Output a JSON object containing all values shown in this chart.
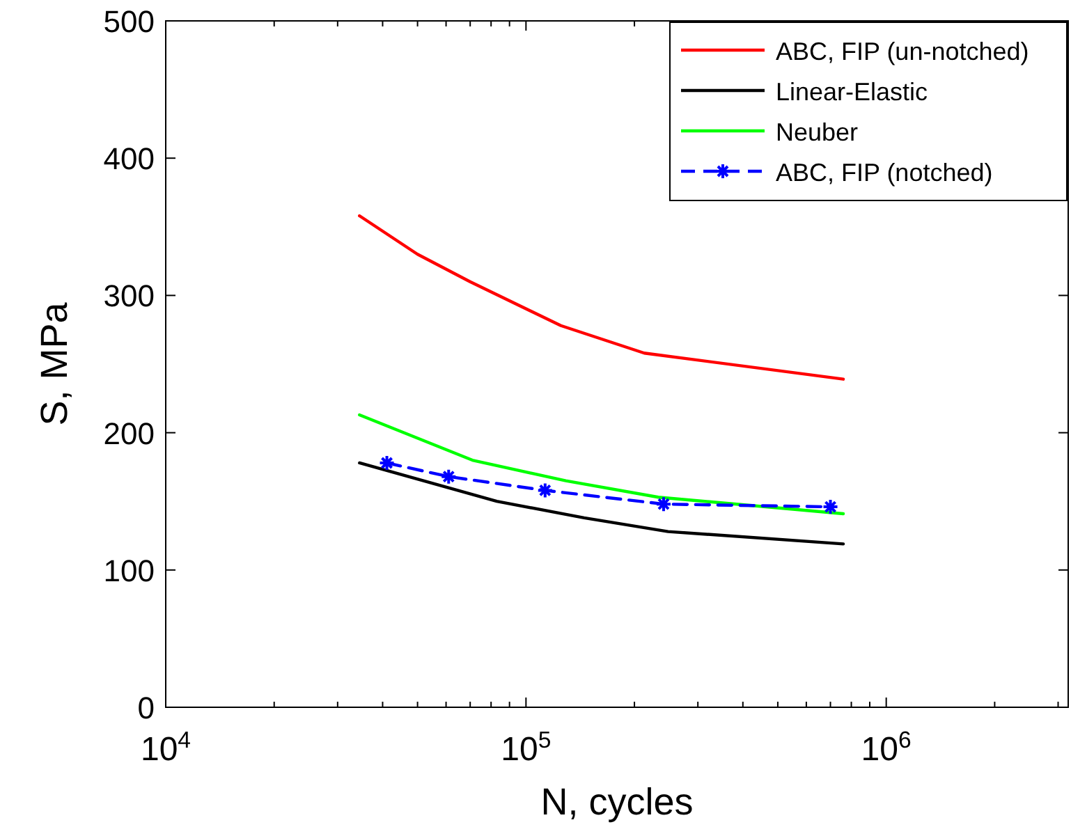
{
  "chart_data": {
    "type": "line",
    "xlabel": "N, cycles",
    "ylabel": "S, MPa",
    "log": "x",
    "xlim": [
      10000,
      3200000
    ],
    "ylim": [
      0,
      500
    ],
    "xticks": [
      {
        "value": 10000,
        "label": "10$^{4}$"
      },
      {
        "value": 20000,
        "label": null
      },
      {
        "value": 30000,
        "label": null
      },
      {
        "value": 40000,
        "label": null
      },
      {
        "value": 50000,
        "label": null
      },
      {
        "value": 60000,
        "label": null
      },
      {
        "value": 70000,
        "label": null
      },
      {
        "value": 80000,
        "label": null
      },
      {
        "value": 90000,
        "label": null
      },
      {
        "value": 100000,
        "label": "10$^{5}$"
      },
      {
        "value": 200000,
        "label": null
      },
      {
        "value": 300000,
        "label": null
      },
      {
        "value": 400000,
        "label": null
      },
      {
        "value": 500000,
        "label": null
      },
      {
        "value": 600000,
        "label": null
      },
      {
        "value": 700000,
        "label": null
      },
      {
        "value": 800000,
        "label": null
      },
      {
        "value": 900000,
        "label": null
      },
      {
        "value": 1000000,
        "label": "10$^{6}$"
      },
      {
        "value": 2000000,
        "label": null
      },
      {
        "value": 3000000,
        "label": null
      }
    ],
    "yticks": [
      0,
      100,
      200,
      300,
      400,
      500
    ],
    "grid": false,
    "legend": "top right",
    "series": [
      {
        "name": "ABC, FIP (un-notched)",
        "color": "#ff0000",
        "x": [
          34500,
          50000,
          70000,
          125000,
          213000,
          760000
        ],
        "values": [
          358,
          330,
          310,
          278,
          258,
          239
        ],
        "marker": "none",
        "line_style": "solid"
      },
      {
        "name": "Linear-Elastic",
        "color": "#000000",
        "x": [
          34500,
          83000,
          145000,
          248000,
          760000
        ],
        "values": [
          178,
          150,
          138,
          128,
          119
        ],
        "marker": "none",
        "line_style": "solid"
      },
      {
        "name": "Neuber",
        "color": "#00ff00",
        "x": [
          34500,
          71000,
          129000,
          233000,
          760000
        ],
        "values": [
          213,
          180,
          165,
          153,
          141
        ],
        "marker": "none",
        "line_style": "solid"
      },
      {
        "name": "ABC, FIP (notched)",
        "color": "#0000ff",
        "x": [
          41100,
          61000,
          113000,
          241000,
          700000
        ],
        "values": [
          178,
          168,
          158,
          148,
          146
        ],
        "marker": "cross",
        "line_style": "dashed"
      }
    ]
  }
}
